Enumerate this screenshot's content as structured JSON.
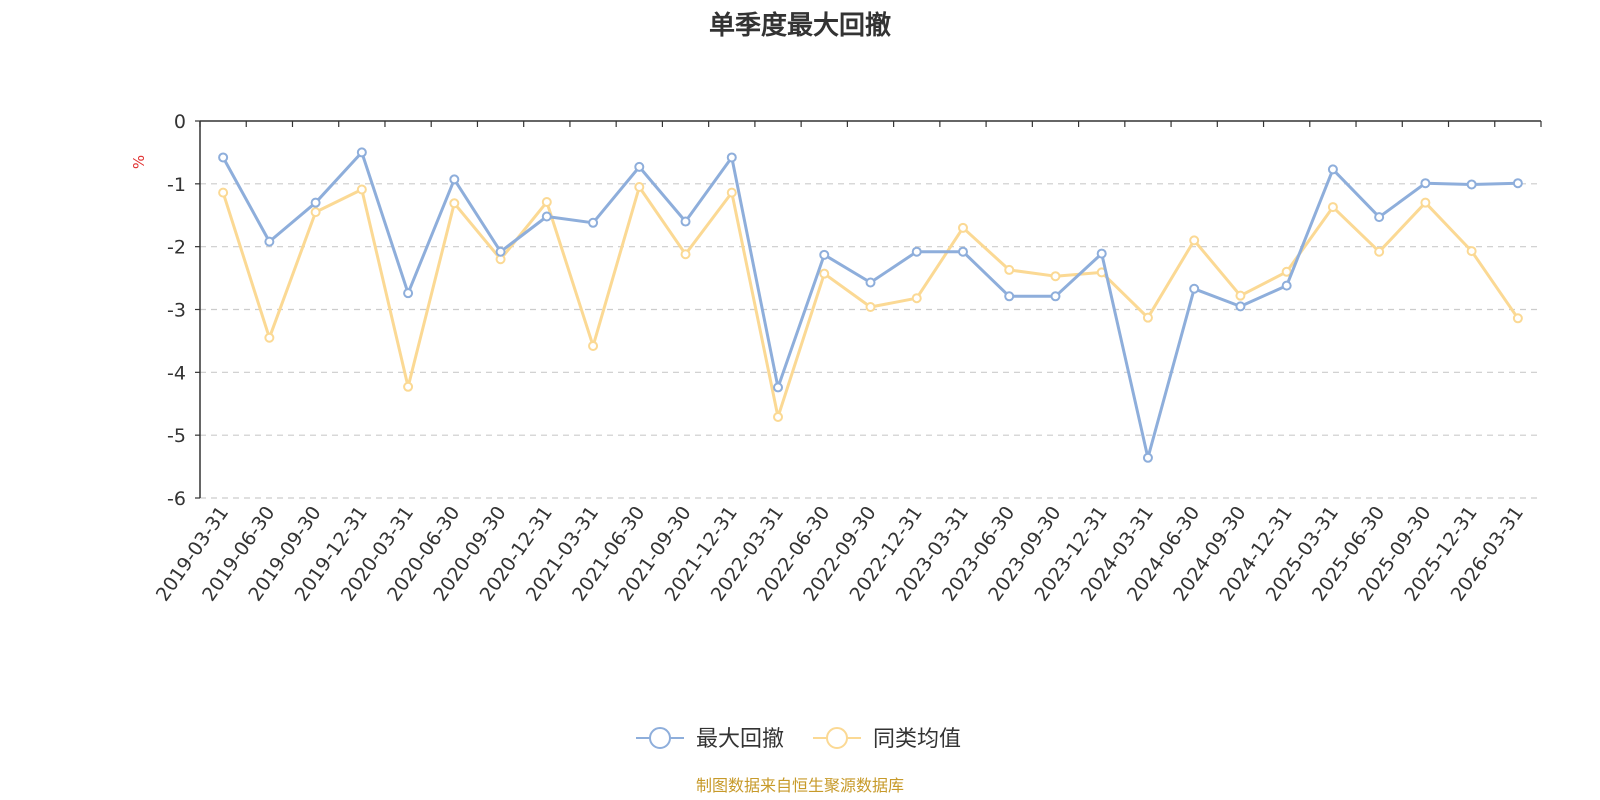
{
  "title": "单季度最大回撤",
  "source_note": "制图数据来自恒生聚源数据库",
  "colors": {
    "series_1": "#8eaedb",
    "series_2": "#fbd994",
    "grid": "#cccccc",
    "axis": "#333333",
    "unit": "#e03131",
    "source": "#c79a2a"
  },
  "chart_data": {
    "type": "line",
    "title": "单季度最大回撤",
    "ylabel": "%",
    "ylim": [
      -6,
      0
    ],
    "yticks": [
      0,
      -1,
      -2,
      -3,
      -4,
      -5,
      -6
    ],
    "grid": "horizontal-dashed",
    "legend_position": "bottom-center",
    "categories": [
      "2019-03-31",
      "2019-06-30",
      "2019-09-30",
      "2019-12-31",
      "2020-03-31",
      "2020-06-30",
      "2020-09-30",
      "2020-12-31",
      "2021-03-31",
      "2021-06-30",
      "2021-09-30",
      "2021-12-31",
      "2022-03-31",
      "2022-06-30",
      "2022-09-30",
      "2022-12-31",
      "2023-03-31",
      "2023-06-30",
      "2023-09-30",
      "2023-12-31",
      "2024-03-31",
      "2024-06-30",
      "2024-09-30",
      "2024-12-31",
      "2025-03-31",
      "2025-06-30",
      "2025-09-30",
      "2025-12-31",
      "2026-03-31"
    ],
    "series": [
      {
        "name": "最大回撤",
        "values": [
          -0.58,
          -1.92,
          -1.3,
          -0.5,
          -2.74,
          -0.93,
          -2.08,
          -1.52,
          -1.62,
          -0.73,
          -1.6,
          -0.58,
          -4.24,
          -2.13,
          -2.57,
          -2.08,
          -2.08,
          -2.79,
          -2.79,
          -2.11,
          -5.36,
          -2.67,
          -2.95,
          -2.62,
          -0.77,
          -1.53,
          -0.99,
          -1.01,
          -0.99
        ]
      },
      {
        "name": "同类均值",
        "values": [
          -1.14,
          -3.45,
          -1.45,
          -1.09,
          -4.23,
          -1.31,
          -2.2,
          -1.29,
          -3.58,
          -1.05,
          -2.12,
          -1.14,
          -4.71,
          -2.43,
          -2.96,
          -2.82,
          -1.7,
          -2.37,
          -2.47,
          -2.41,
          -3.13,
          -1.9,
          -2.78,
          -2.4,
          -1.37,
          -2.08,
          -1.3,
          -2.07,
          -3.14
        ]
      }
    ]
  }
}
